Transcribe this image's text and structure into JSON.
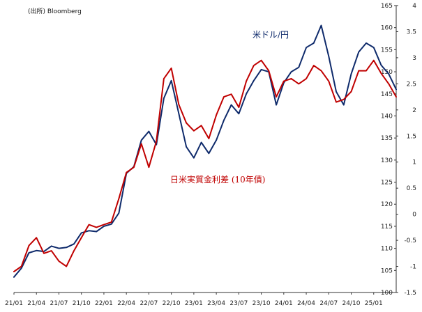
{
  "chart_data": {
    "type": "line",
    "source_note": "(出所) Bloomberg",
    "x_tick_labels": [
      "21/01",
      "21/04",
      "21/07",
      "21/10",
      "22/01",
      "22/04",
      "22/07",
      "22/10",
      "23/01",
      "23/04",
      "23/07",
      "23/10",
      "24/01",
      "24/04",
      "24/07",
      "24/10",
      "25/01"
    ],
    "x_range": [
      "2021-01",
      "2025-04"
    ],
    "y_left": {
      "ticks": [
        "100",
        "105",
        "110",
        "115",
        "120",
        "125",
        "130",
        "135",
        "140",
        "145",
        "150",
        "155",
        "160",
        "165"
      ],
      "ylim": [
        100,
        165
      ]
    },
    "y_right": {
      "ticks": [
        "-1.5",
        "-1",
        "-0.5",
        "0",
        "0.5",
        "1",
        "1.5",
        "2",
        "2.5",
        "3",
        "3.5",
        "4"
      ],
      "ylim": [
        -1.5,
        4
      ]
    },
    "colors": {
      "usd_jpy": "#0e2a6b",
      "real_rate_diff": "#c00000"
    },
    "series": [
      {
        "name": "米ドル/円",
        "axis": "left",
        "x": [
          "2021-01",
          "2021-02",
          "2021-03",
          "2021-04",
          "2021-05",
          "2021-06",
          "2021-07",
          "2021-08",
          "2021-09",
          "2021-10",
          "2021-11",
          "2021-12",
          "2022-01",
          "2022-02",
          "2022-03",
          "2022-04",
          "2022-05",
          "2022-06",
          "2022-07",
          "2022-08",
          "2022-09",
          "2022-10",
          "2022-11",
          "2022-12",
          "2023-01",
          "2023-02",
          "2023-03",
          "2023-04",
          "2023-05",
          "2023-06",
          "2023-07",
          "2023-08",
          "2023-09",
          "2023-10",
          "2023-11",
          "2023-12",
          "2024-01",
          "2024-02",
          "2024-03",
          "2024-04",
          "2024-05",
          "2024-06",
          "2024-07",
          "2024-08",
          "2024-09",
          "2024-10",
          "2024-11",
          "2024-12",
          "2025-01",
          "2025-02",
          "2025-03",
          "2025-04"
        ],
        "values": [
          103.5,
          105.5,
          109.0,
          109.5,
          109.3,
          110.5,
          110.0,
          110.2,
          111.0,
          113.5,
          114.0,
          113.8,
          115.0,
          115.5,
          118.0,
          127.0,
          128.5,
          134.5,
          136.5,
          133.5,
          144.0,
          148.0,
          140.5,
          133.0,
          130.5,
          134.0,
          131.5,
          134.5,
          139.0,
          142.5,
          140.5,
          145.0,
          148.0,
          150.5,
          150.0,
          142.5,
          147.5,
          150.0,
          151.0,
          155.5,
          156.5,
          160.5,
          153.5,
          145.5,
          142.5,
          149.5,
          154.5,
          156.5,
          155.5,
          151.5,
          149.5,
          146.0
        ]
      },
      {
        "name": "日米実質金利差 (10年債)",
        "axis": "right",
        "x": [
          "2021-01",
          "2021-02",
          "2021-03",
          "2021-04",
          "2021-05",
          "2021-06",
          "2021-07",
          "2021-08",
          "2021-09",
          "2021-10",
          "2021-11",
          "2021-12",
          "2022-01",
          "2022-02",
          "2022-03",
          "2022-04",
          "2022-05",
          "2022-06",
          "2022-07",
          "2022-08",
          "2022-09",
          "2022-10",
          "2022-11",
          "2022-12",
          "2023-01",
          "2023-02",
          "2023-03",
          "2023-04",
          "2023-05",
          "2023-06",
          "2023-07",
          "2023-08",
          "2023-09",
          "2023-10",
          "2023-11",
          "2023-12",
          "2024-01",
          "2024-02",
          "2024-03",
          "2024-04",
          "2024-05",
          "2024-06",
          "2024-07",
          "2024-08",
          "2024-09",
          "2024-10",
          "2024-11",
          "2024-12",
          "2025-01",
          "2025-02",
          "2025-03",
          "2025-04"
        ],
        "values": [
          -1.1,
          -1.0,
          -0.6,
          -0.45,
          -0.75,
          -0.7,
          -0.9,
          -1.0,
          -0.7,
          -0.45,
          -0.2,
          -0.25,
          -0.2,
          -0.15,
          0.3,
          0.8,
          0.9,
          1.35,
          0.9,
          1.4,
          2.6,
          2.8,
          2.1,
          1.75,
          1.6,
          1.7,
          1.45,
          1.9,
          2.25,
          2.3,
          2.05,
          2.55,
          2.85,
          2.95,
          2.75,
          2.25,
          2.55,
          2.6,
          2.5,
          2.6,
          2.85,
          2.75,
          2.55,
          2.15,
          2.2,
          2.35,
          2.75,
          2.75,
          2.95,
          2.7,
          2.5,
          2.25
        ]
      }
    ],
    "annotations": [
      "米ドル/円",
      "日米実質金利差 (10年債)"
    ]
  }
}
